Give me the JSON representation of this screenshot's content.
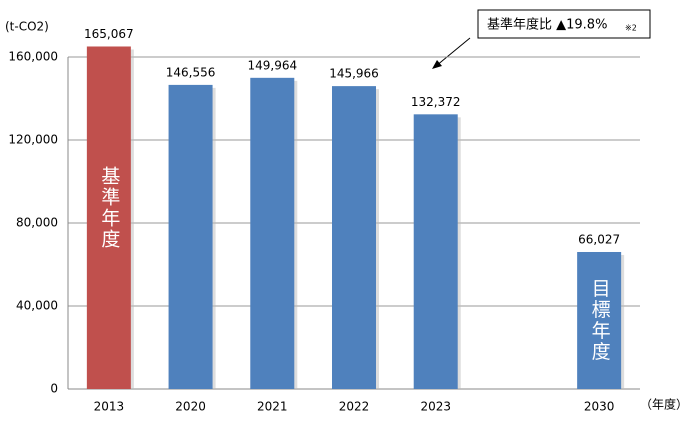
{
  "chart_data": {
    "type": "bar",
    "y_label": "(t-CO2)",
    "x_label": "（年度）",
    "categories": [
      "2013",
      "2020",
      "2021",
      "2022",
      "2023",
      null,
      "2030"
    ],
    "values": [
      165067,
      146556,
      149964,
      145966,
      132372,
      null,
      66027
    ],
    "value_labels": [
      "165,067",
      "146,556",
      "149,964",
      "145,966",
      "132,372",
      null,
      "66,027"
    ],
    "colors": [
      "#c0504d",
      "#4f81bd",
      "#4f81bd",
      "#4f81bd",
      "#4f81bd",
      null,
      "#4f81bd"
    ],
    "bar_texts": [
      "基準年度",
      null,
      null,
      null,
      null,
      null,
      "目標年度"
    ],
    "annotation": {
      "text": "基準年度比 ▲19.8%",
      "note": "※2"
    },
    "ylim": [
      0,
      160000
    ],
    "yticks": [
      0,
      {
        "value": 40000,
        "label": "40,000"
      },
      {
        "value": 80000,
        "label": "80,000"
      },
      {
        "value": 120000,
        "label": "120,000"
      },
      {
        "value": 160000,
        "label": "160,000"
      }
    ],
    "grid": true
  }
}
